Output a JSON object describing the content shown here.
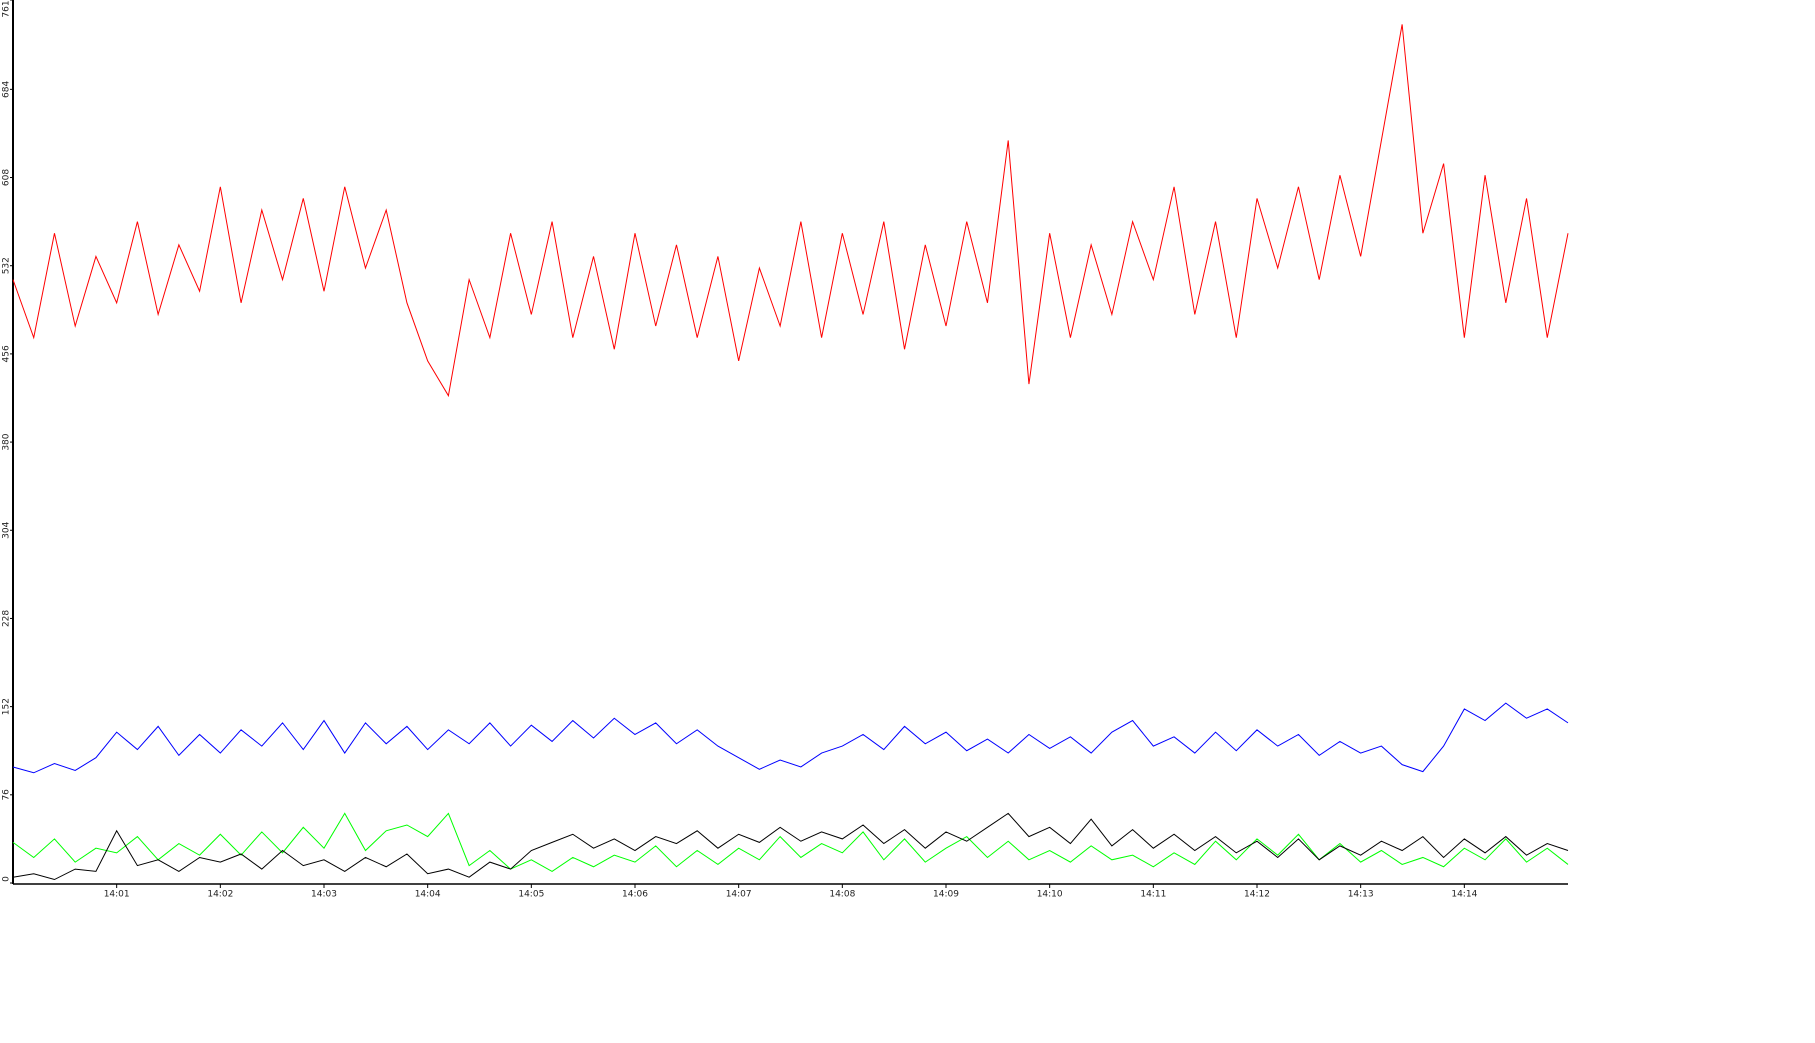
{
  "chart_data": {
    "type": "line",
    "x": [
      0,
      0.2,
      0.4,
      0.6,
      0.8,
      1,
      1.2,
      1.4,
      1.6,
      1.8,
      2,
      2.2,
      2.4,
      2.6,
      2.8,
      3,
      3.2,
      3.4,
      3.6,
      3.8,
      4,
      4.2,
      4.4,
      4.6,
      4.8,
      5,
      5.2,
      5.4,
      5.6,
      5.8,
      6,
      6.2,
      6.4,
      6.6,
      6.8,
      7,
      7.2,
      7.4,
      7.6,
      7.8,
      8,
      8.2,
      8.4,
      8.6,
      8.8,
      9,
      9.2,
      9.4,
      9.6,
      9.8,
      10,
      10.2,
      10.4,
      10.6,
      10.8,
      11,
      11.2,
      11.4,
      11.6,
      11.8,
      12,
      12.2,
      12.4,
      12.6,
      12.8,
      13,
      13.2,
      13.4,
      13.6,
      13.8,
      14,
      14.2,
      14.4,
      14.6,
      14.8,
      15
    ],
    "xlim": [
      0,
      15
    ],
    "xticks": [
      {
        "value": 1,
        "label": "14:01"
      },
      {
        "value": 2,
        "label": "14:02"
      },
      {
        "value": 3,
        "label": "14:03"
      },
      {
        "value": 4,
        "label": "14:04"
      },
      {
        "value": 5,
        "label": "14:05"
      },
      {
        "value": 6,
        "label": "14:06"
      },
      {
        "value": 7,
        "label": "14:07"
      },
      {
        "value": 8,
        "label": "14:08"
      },
      {
        "value": 9,
        "label": "14:09"
      },
      {
        "value": 10,
        "label": "14:10"
      },
      {
        "value": 11,
        "label": "14:11"
      },
      {
        "value": 12,
        "label": "14:12"
      },
      {
        "value": 13,
        "label": "14:13"
      },
      {
        "value": 14,
        "label": "14:14"
      }
    ],
    "ylim": [
      0,
      761
    ],
    "yticks": [
      0,
      76,
      152,
      228,
      304,
      380,
      456,
      532,
      608,
      684,
      761
    ],
    "series": [
      {
        "color": "#ff0000",
        "values": [
          520,
          470,
          560,
          480,
          540,
          500,
          570,
          490,
          550,
          510,
          600,
          500,
          580,
          520,
          590,
          510,
          600,
          530,
          580,
          500,
          450,
          420,
          520,
          470,
          560,
          490,
          570,
          470,
          540,
          460,
          560,
          480,
          550,
          470,
          540,
          450,
          530,
          480,
          570,
          470,
          560,
          490,
          570,
          460,
          550,
          480,
          570,
          500,
          640,
          430,
          560,
          470,
          550,
          490,
          570,
          520,
          600,
          490,
          570,
          470,
          590,
          530,
          600,
          520,
          610,
          540,
          640,
          740,
          560,
          620,
          470,
          610,
          500,
          590,
          470,
          560
        ]
      },
      {
        "color": "#0000ff",
        "values": [
          100,
          95,
          103,
          97,
          108,
          130,
          115,
          135,
          110,
          128,
          112,
          132,
          118,
          138,
          115,
          140,
          112,
          138,
          120,
          135,
          115,
          132,
          120,
          138,
          118,
          136,
          122,
          140,
          125,
          142,
          128,
          138,
          120,
          132,
          118,
          108,
          98,
          106,
          100,
          112,
          118,
          128,
          115,
          135,
          120,
          130,
          114,
          124,
          112,
          128,
          116,
          126,
          112,
          130,
          140,
          118,
          126,
          112,
          130,
          114,
          132,
          118,
          128,
          110,
          122,
          112,
          118,
          102,
          96,
          118,
          150,
          140,
          155,
          142,
          150,
          138
        ]
      },
      {
        "color": "#00ff00",
        "values": [
          35,
          22,
          38,
          18,
          30,
          26,
          40,
          20,
          34,
          24,
          42,
          24,
          44,
          26,
          48,
          30,
          60,
          28,
          45,
          50,
          40,
          60,
          15,
          28,
          12,
          20,
          10,
          22,
          14,
          24,
          18,
          32,
          14,
          28,
          16,
          30,
          20,
          40,
          22,
          34,
          26,
          44,
          20,
          38,
          18,
          30,
          40,
          22,
          36,
          20,
          28,
          18,
          32,
          20,
          24,
          14,
          26,
          16,
          36,
          20,
          38,
          24,
          42,
          20,
          34,
          18,
          28,
          16,
          22,
          14,
          30,
          20,
          38,
          18,
          30,
          16
        ]
      },
      {
        "color": "#000000",
        "values": [
          5,
          8,
          3,
          12,
          10,
          45,
          15,
          20,
          10,
          22,
          18,
          25,
          12,
          28,
          15,
          20,
          10,
          22,
          14,
          25,
          8,
          12,
          5,
          18,
          12,
          28,
          35,
          42,
          30,
          38,
          28,
          40,
          34,
          45,
          30,
          42,
          35,
          48,
          36,
          44,
          38,
          50,
          34,
          46,
          30,
          44,
          36,
          48,
          60,
          40,
          48,
          34,
          55,
          32,
          46,
          30,
          42,
          28,
          40,
          26,
          36,
          22,
          38,
          20,
          32,
          24,
          36,
          28,
          40,
          22,
          38,
          26,
          40,
          24,
          34,
          28
        ]
      }
    ]
  }
}
